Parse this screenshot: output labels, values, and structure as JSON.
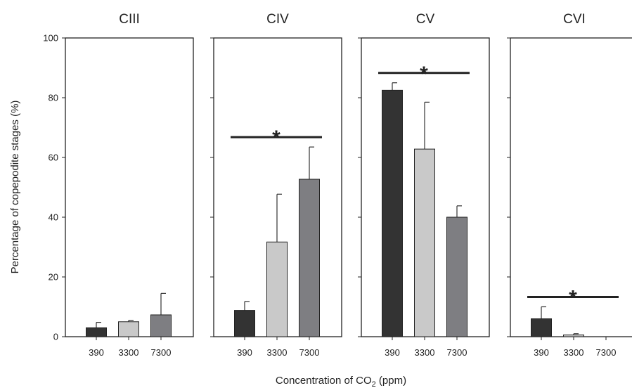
{
  "chart_data": {
    "type": "bar",
    "xlabel_prefix": "Concentration of CO",
    "xlabel_sub": "2",
    "xlabel_suffix": " (ppm)",
    "ylabel": "Percentage of copepodite stages (%)",
    "ylim": [
      0,
      100
    ],
    "yticks": [
      0,
      20,
      40,
      60,
      80,
      100
    ],
    "categories": [
      "390",
      "3300",
      "7300"
    ],
    "colors": [
      "#333333",
      "#c9c9c9",
      "#7e7e82"
    ],
    "panels": [
      {
        "name": "CIII",
        "values": [
          3,
          5,
          7.3
        ],
        "errors": [
          1.8,
          0.5,
          7.2
        ],
        "significant": false,
        "marker": ""
      },
      {
        "name": "CIV",
        "values": [
          8.8,
          31.7,
          52.7
        ],
        "errors": [
          3,
          16,
          10.8
        ],
        "significant": true,
        "marker": "*"
      },
      {
        "name": "CV",
        "values": [
          82.5,
          62.8,
          40
        ],
        "errors": [
          2.5,
          15.7,
          3.8
        ],
        "significant": true,
        "marker": "*"
      },
      {
        "name": "CVI",
        "values": [
          6,
          0.6,
          0
        ],
        "errors": [
          4,
          0.4,
          0
        ],
        "significant": true,
        "marker": "*"
      }
    ]
  }
}
